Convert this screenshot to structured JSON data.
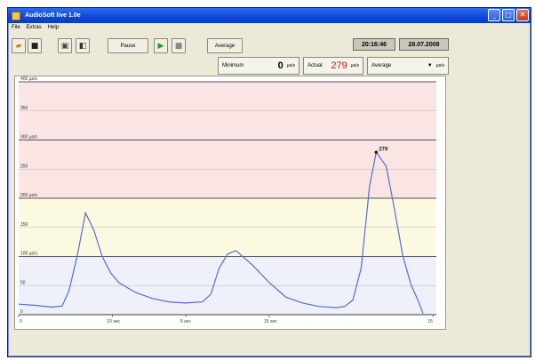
{
  "window": {
    "title": "AudioSoft live 1.0e"
  },
  "menu": [
    "File",
    "Extras",
    "Help"
  ],
  "toolbar": {
    "pause_label": "Pause",
    "average_label": "Average",
    "time": "20:16:46",
    "date": "28.07.2008"
  },
  "readouts": {
    "minimum_label": "Minimum",
    "minimum_value": "0",
    "minimum_unit": "µs/s",
    "actual_label": "Actual",
    "actual_value": "279",
    "actual_unit": "µs/s",
    "average_label": "Average",
    "average_value": "",
    "average_unit": "µs/s"
  },
  "colors": {
    "band_red": "#fbe4e4",
    "band_yellow": "#fbfae0",
    "band_blue": "#eef0fa",
    "line": "#5a6bd0"
  },
  "chart_data": {
    "type": "line",
    "ylim": [
      0,
      400
    ],
    "xlim": [
      0,
      25
    ],
    "y_tick_labels": [
      "400 µs/s",
      "350",
      "300 µs/s",
      "250",
      "200 µs/s",
      "150",
      "100 µs/s",
      "50",
      "0"
    ],
    "x_tick_labels": [
      "0",
      "10 sec",
      "5 sec",
      "15 sec",
      "15"
    ],
    "bands": [
      {
        "from": 200,
        "to": 400,
        "color": "#fbe4e4"
      },
      {
        "from": 100,
        "to": 200,
        "color": "#fbfae0"
      },
      {
        "from": 0,
        "to": 100,
        "color": "#eef0fa"
      }
    ],
    "annotation": {
      "x": 21.4,
      "y": 279,
      "label": "279"
    },
    "series": [
      {
        "x": [
          0,
          1,
          2,
          2.6,
          3,
          3.5,
          4,
          4.5,
          5,
          5.5,
          6,
          7,
          8,
          9,
          10,
          11,
          11.5,
          12,
          12.5,
          13,
          14,
          15,
          16,
          17,
          18,
          19,
          19.5,
          20,
          20.5,
          21,
          21.4,
          22,
          22.5,
          23,
          23.5,
          23.9,
          24.2
        ],
        "values": [
          18,
          16,
          13,
          15,
          40,
          100,
          175,
          145,
          100,
          72,
          55,
          38,
          28,
          22,
          20,
          22,
          35,
          80,
          104,
          110,
          85,
          55,
          30,
          20,
          14,
          12,
          14,
          25,
          80,
          220,
          279,
          255,
          180,
          100,
          50,
          25,
          2
        ]
      }
    ]
  }
}
